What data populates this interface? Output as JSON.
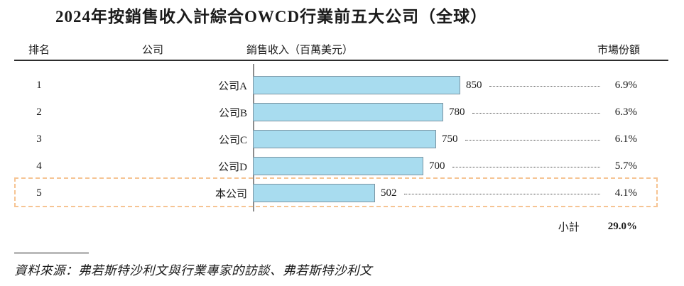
{
  "title": "2024年按銷售收入計綜合OWCD行業前五大公司（全球）",
  "table": {
    "headers": {
      "rank": "排名",
      "company": "公司",
      "revenue": "銷售收入（百萬美元）",
      "share": "市場份額"
    },
    "rows": [
      {
        "rank": "1",
        "company": "公司A",
        "revenue": 850,
        "share": "6.9%",
        "highlight": false
      },
      {
        "rank": "2",
        "company": "公司B",
        "revenue": 780,
        "share": "6.3%",
        "highlight": false
      },
      {
        "rank": "3",
        "company": "公司C",
        "revenue": 750,
        "share": "6.1%",
        "highlight": false
      },
      {
        "rank": "4",
        "company": "公司D",
        "revenue": 700,
        "share": "5.7%",
        "highlight": false
      },
      {
        "rank": "5",
        "company": "本公司",
        "revenue": 502,
        "share": "4.1%",
        "highlight": true
      }
    ],
    "subtotal": {
      "label": "小計",
      "value": "29.0%"
    }
  },
  "chart_data": {
    "type": "bar",
    "orientation": "horizontal",
    "title": "2024年按銷售收入計綜合OWCD行業前五大公司（全球）",
    "xlabel": "銷售收入（百萬美元）",
    "categories": [
      "公司A",
      "公司B",
      "公司C",
      "公司D",
      "本公司"
    ],
    "values": [
      850,
      780,
      750,
      700,
      502
    ],
    "shares_pct": [
      6.9,
      6.3,
      6.1,
      5.7,
      4.1
    ],
    "subtotal_share_pct": 29.0,
    "xmax": 850,
    "highlighted_category": "本公司",
    "bar_color": "#a8dcef",
    "bar_border_color": "#7b94a2",
    "highlight_border_color": "#f6c493"
  },
  "footer": {
    "source": "資料來源：弗若斯特沙利文與行業專家的訪談、弗若斯特沙利文"
  }
}
